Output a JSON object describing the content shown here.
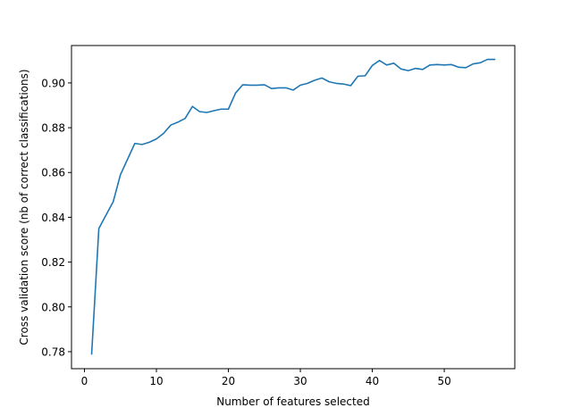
{
  "chart_data": {
    "type": "line",
    "title": "",
    "xlabel": "Number of features selected",
    "ylabel": "Cross validation score (nb of correct classifications)",
    "xlim": [
      -1.8,
      59.8
    ],
    "ylim": [
      0.7724,
      0.9167
    ],
    "xticks": [
      0,
      10,
      20,
      30,
      40,
      50
    ],
    "yticks": [
      0.78,
      0.8,
      0.82,
      0.84,
      0.86,
      0.88,
      0.9
    ],
    "ytick_labels": [
      "0.78",
      "0.80",
      "0.82",
      "0.84",
      "0.86",
      "0.88",
      "0.90"
    ],
    "grid": false,
    "line_color": "#1f77b4",
    "series": [
      {
        "x": [
          1,
          2,
          3,
          4,
          5,
          6,
          7,
          8,
          9,
          10,
          11,
          12,
          13,
          14,
          15,
          16,
          17,
          18,
          19,
          20,
          21,
          22,
          23,
          24,
          25,
          26,
          27,
          28,
          29,
          30,
          31,
          32,
          33,
          34,
          35,
          36,
          37,
          38,
          39,
          40,
          41,
          42,
          43,
          44,
          45,
          46,
          47,
          48,
          49,
          50,
          51,
          52,
          53,
          54,
          55,
          56,
          57
        ],
        "values": [
          0.779,
          0.835,
          0.841,
          0.847,
          0.859,
          0.866,
          0.873,
          0.8725,
          0.8735,
          0.875,
          0.8775,
          0.8812,
          0.8825,
          0.8842,
          0.8895,
          0.8872,
          0.8868,
          0.8876,
          0.8883,
          0.8883,
          0.8955,
          0.8992,
          0.899,
          0.899,
          0.8992,
          0.8975,
          0.8978,
          0.8978,
          0.8968,
          0.899,
          0.8998,
          0.9012,
          0.9022,
          0.9005,
          0.8998,
          0.8995,
          0.8988,
          0.903,
          0.9032,
          0.9078,
          0.91,
          0.908,
          0.9088,
          0.9062,
          0.9055,
          0.9065,
          0.906,
          0.908,
          0.9082,
          0.908,
          0.9082,
          0.907,
          0.9068,
          0.9085,
          0.909,
          0.9105,
          0.9105
        ]
      }
    ]
  }
}
